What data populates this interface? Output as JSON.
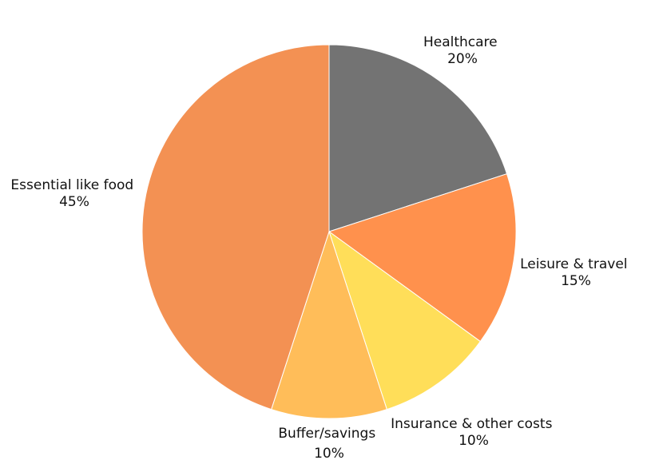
{
  "chart_data": {
    "type": "pie",
    "title": "",
    "slices": [
      {
        "name": "Healthcare",
        "value": 20,
        "pct_label": "20%",
        "color": "#737373"
      },
      {
        "name": "Leisure & travel",
        "value": 15,
        "pct_label": "15%",
        "color": "#FF914D"
      },
      {
        "name": "Insurance & other costs",
        "value": 10,
        "pct_label": "10%",
        "color": "#FFDE59"
      },
      {
        "name": "Buffer/savings",
        "value": 10,
        "pct_label": "10%",
        "color": "#FFBD59"
      },
      {
        "name": "Essential like food",
        "value": 45,
        "pct_label": "45%",
        "color": "#F39153"
      }
    ],
    "start": "12 o'clock",
    "direction": "clockwise",
    "legend": "none"
  }
}
